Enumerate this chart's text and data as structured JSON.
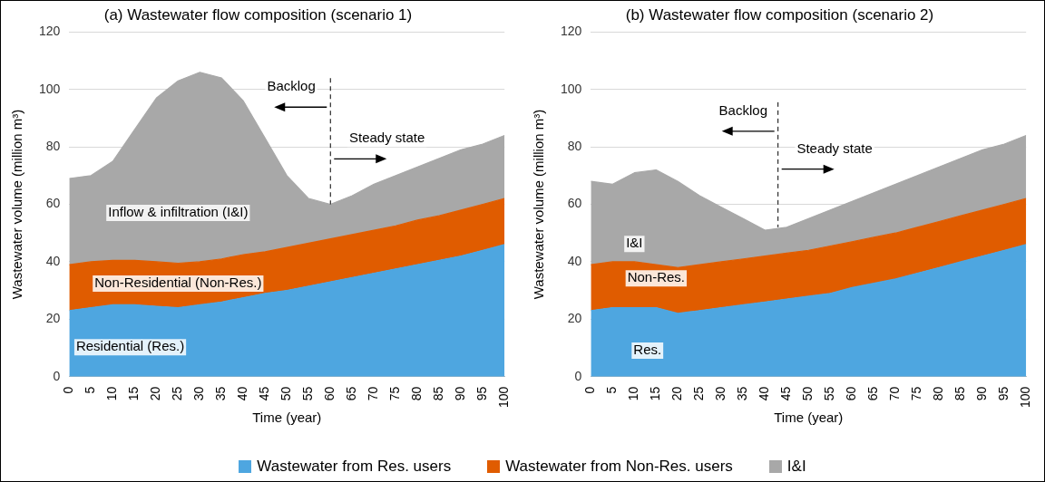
{
  "chart_data": [
    {
      "type": "area",
      "title": "(a) Wastewater flow composition (scenario 1)",
      "xlabel": "Time (year)",
      "ylabel": "Wastewater volume (million m³)",
      "stacked": true,
      "grid": "y",
      "legend": "bottom",
      "x": [
        0,
        5,
        10,
        15,
        20,
        25,
        30,
        35,
        40,
        45,
        50,
        55,
        60,
        65,
        70,
        75,
        80,
        85,
        90,
        95,
        100
      ],
      "xlim": [
        0,
        100
      ],
      "xticks": [
        0,
        5,
        10,
        15,
        20,
        25,
        30,
        35,
        40,
        45,
        50,
        55,
        60,
        65,
        70,
        75,
        80,
        85,
        90,
        95,
        100
      ],
      "ylim": [
        0,
        120
      ],
      "yticks": [
        0,
        20,
        40,
        60,
        80,
        100,
        120
      ],
      "series": [
        {
          "name": "Wastewater from Res. users",
          "color": "#4ea6e0",
          "values": [
            23,
            24,
            25,
            25,
            24.5,
            24,
            25,
            26,
            27.5,
            29,
            30,
            31.5,
            33,
            34.5,
            36,
            37.5,
            39,
            40.5,
            42,
            44,
            46
          ]
        },
        {
          "name": "Wastewater from Non-Res. users",
          "color": "#e05c00",
          "values": [
            16,
            16,
            15.5,
            15.5,
            15.5,
            15.5,
            15,
            15,
            15,
            14.5,
            15,
            15,
            15,
            15,
            15,
            15,
            15.5,
            15.5,
            16,
            16,
            16
          ]
        },
        {
          "name": "I&I",
          "color": "#a8a8a8",
          "values": [
            30,
            30,
            34.5,
            45.5,
            57,
            63.5,
            66,
            63,
            53.5,
            39.5,
            25,
            15.5,
            12,
            13.5,
            16,
            17.5,
            18.5,
            20,
            21,
            21,
            22
          ]
        }
      ],
      "ref_lines": [
        {
          "axis": "x",
          "value": 60,
          "line_style": "dashed",
          "color": "#000000"
        }
      ],
      "annotations": [
        "Backlog",
        "Steady state",
        "Inflow & infiltration (I&I)",
        "Non-Residential (Non-Res.)",
        "Residential (Res.)"
      ]
    },
    {
      "type": "area",
      "title": "(b) Wastewater flow composition (scenario 2)",
      "xlabel": "Time (year)",
      "ylabel": "Wastewater volume (million m³)",
      "stacked": true,
      "grid": "y",
      "x": [
        0,
        5,
        10,
        15,
        20,
        25,
        30,
        35,
        40,
        45,
        50,
        55,
        60,
        65,
        70,
        75,
        80,
        85,
        90,
        95,
        100
      ],
      "xlim": [
        0,
        100
      ],
      "xticks": [
        0,
        5,
        10,
        15,
        20,
        25,
        30,
        35,
        40,
        45,
        50,
        55,
        60,
        65,
        70,
        75,
        80,
        85,
        90,
        95,
        100
      ],
      "ylim": [
        0,
        120
      ],
      "yticks": [
        0,
        20,
        40,
        60,
        80,
        100,
        120
      ],
      "series": [
        {
          "color": "#4ea6e0",
          "values": [
            23,
            24,
            24,
            24,
            22,
            23,
            24,
            25,
            26,
            27,
            28,
            29,
            31,
            32.5,
            34,
            36,
            38,
            40,
            42,
            44,
            46
          ]
        },
        {
          "color": "#e05c00",
          "values": [
            16,
            16,
            16,
            15,
            16,
            16,
            16,
            16,
            16,
            16,
            16,
            16.5,
            16,
            16,
            16,
            16,
            16,
            16,
            16,
            16,
            16
          ]
        },
        {
          "color": "#a8a8a8",
          "values": [
            29,
            27,
            31,
            33,
            30,
            24,
            19,
            14,
            9,
            9,
            11,
            12.5,
            14,
            15.5,
            17,
            18,
            19,
            20,
            21,
            21,
            22
          ]
        }
      ],
      "ref_lines": [
        {
          "axis": "x",
          "value": 43,
          "line_style": "dashed",
          "color": "#000000"
        }
      ],
      "annotations": [
        "Backlog",
        "Steady state",
        "I&I",
        "Non-Res.",
        "Res."
      ]
    }
  ]
}
